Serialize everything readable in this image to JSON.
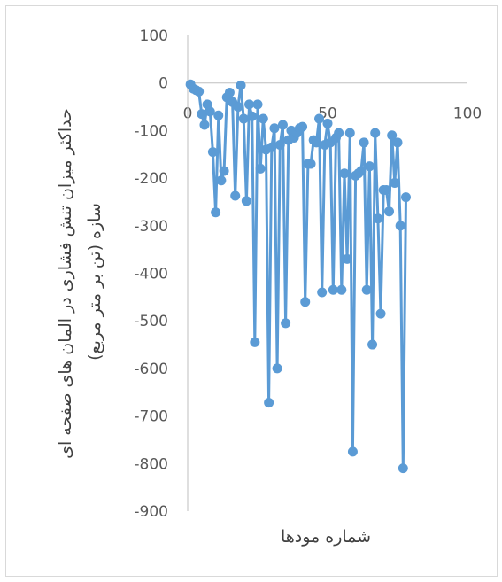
{
  "chart_data": {
    "type": "scatter",
    "title": "",
    "xlabel": "شماره مودها",
    "ylabel_line1": "حداکثر میزان تنش فشاری در المان های صفحه ای",
    "ylabel_line2": "سازه (تن بر متر مربع)",
    "xlim": [
      0,
      100
    ],
    "ylim": [
      -900,
      100
    ],
    "x_ticks": [
      0,
      50,
      100
    ],
    "y_ticks": [
      100,
      0,
      -100,
      -200,
      -300,
      -400,
      -500,
      -600,
      -700,
      -800,
      -900
    ],
    "x_tick_labels": [
      "0",
      "50",
      "100"
    ],
    "y_tick_labels": [
      "100",
      "0",
      "-100",
      "-200",
      "-300",
      "-400",
      "-500",
      "-600",
      "-700",
      "-800",
      "-900"
    ],
    "grid": false,
    "series_color": "#5b9bd5",
    "series": [
      {
        "x": [
          1,
          2,
          3,
          4,
          5,
          6,
          7,
          8,
          9,
          10,
          11,
          12,
          13,
          14,
          15,
          16,
          17,
          18,
          19,
          20,
          21,
          22,
          23,
          24,
          25,
          26,
          27,
          28,
          29,
          30,
          31,
          32,
          33,
          34,
          35,
          36,
          37,
          38,
          39,
          40,
          41,
          42,
          43,
          44,
          45,
          46,
          47,
          48,
          49,
          50,
          51,
          52,
          53,
          54,
          55,
          56,
          57,
          58,
          59,
          60,
          61,
          62,
          63,
          64,
          65,
          66,
          67,
          68,
          69,
          70,
          71,
          72,
          73,
          74,
          75,
          76,
          77,
          78
        ],
        "y": [
          -3,
          -12,
          -15,
          -18,
          -65,
          -88,
          -45,
          -60,
          -145,
          -272,
          -68,
          -205,
          -185,
          -30,
          -20,
          -40,
          -237,
          -50,
          -5,
          -75,
          -248,
          -45,
          -70,
          -545,
          -45,
          -180,
          -75,
          -140,
          -672,
          -135,
          -95,
          -600,
          -130,
          -88,
          -505,
          -120,
          -100,
          -115,
          -105,
          -95,
          -92,
          -460,
          -170,
          -170,
          -120,
          -125,
          -75,
          -440,
          -130,
          -85,
          -125,
          -435,
          -115,
          -105,
          -435,
          -190,
          -370,
          -105,
          -775,
          -195,
          -190,
          -185,
          -125,
          -435,
          -175,
          -550,
          -105,
          -285,
          -485,
          -225,
          -225,
          -270,
          -110,
          -210,
          -125,
          -300,
          -810,
          -240
        ]
      }
    ]
  }
}
